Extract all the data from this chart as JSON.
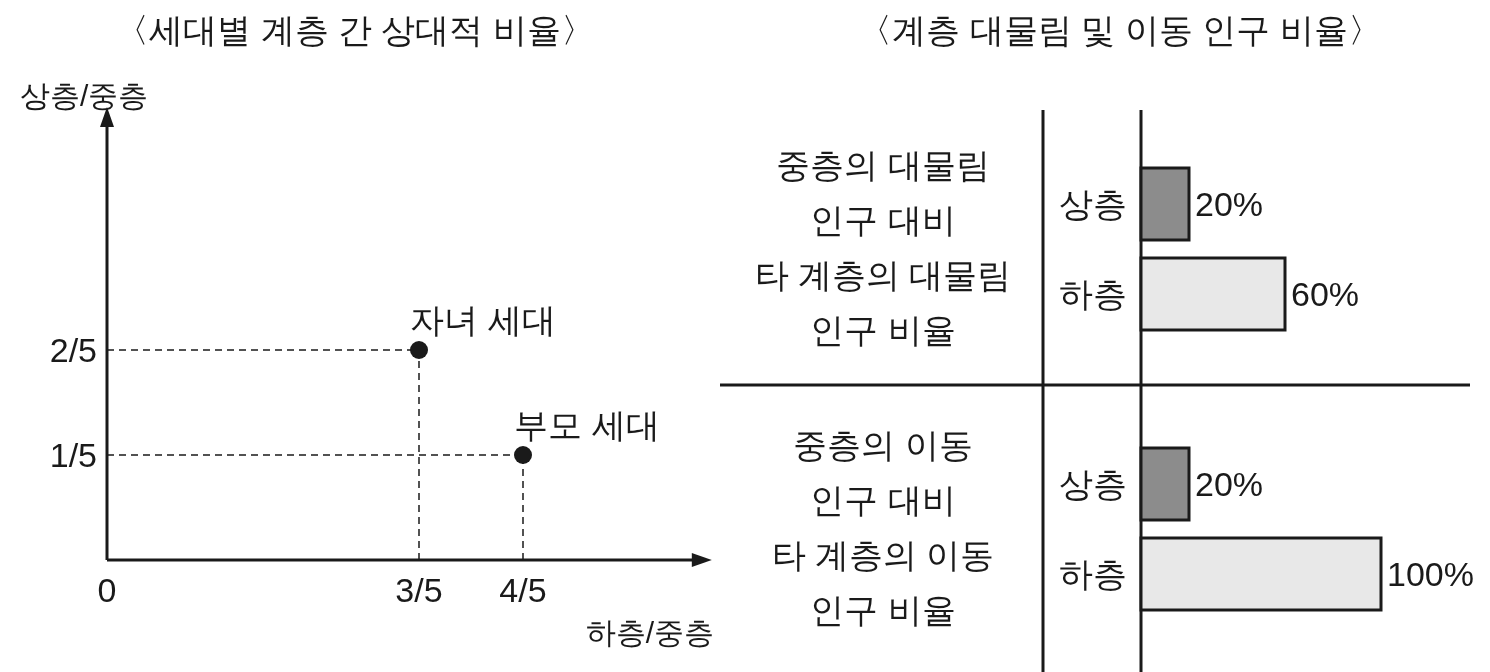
{
  "chart_data": [
    {
      "type": "scatter",
      "title": "〈세대별 계층 간 상대적 비율〉",
      "xlabel": "하층/중층",
      "ylabel": "상층/중층",
      "x": [
        0.6,
        0.8
      ],
      "values": [
        0.4,
        0.2
      ],
      "color": "#1a1a1a",
      "marker": "circle",
      "xlim": [
        0,
        1.14
      ],
      "ylim": [
        0,
        0.84
      ],
      "xticks": [
        0,
        {
          "value": 0.6,
          "label": "3/5"
        },
        {
          "value": 0.8,
          "label": "4/5"
        }
      ],
      "yticks": [
        {
          "value": 0.2,
          "label": "1/5"
        },
        {
          "value": 0.4,
          "label": "2/5"
        }
      ],
      "ref_lines": [
        {
          "axis": "x",
          "value": 0.6,
          "line_style": "dashed"
        },
        {
          "axis": "x",
          "value": 0.8,
          "line_style": "dashed"
        },
        {
          "axis": "y",
          "value": 0.4,
          "line_style": "dashed"
        },
        {
          "axis": "y",
          "value": 0.2,
          "line_style": "dashed"
        }
      ],
      "annotations": [
        {
          "text": "자녀 세대",
          "x": 0.6,
          "y": 0.4
        },
        {
          "text": "부모 세대",
          "x": 0.8,
          "y": 0.2
        }
      ]
    },
    {
      "type": "bar",
      "orientation": "horizontal",
      "title": "〈계층 대물림 및 이동 인구 비율〉",
      "ylabel": "중층의 대물림\n인구 대비\n타 계층의 대물림\n인구 비율",
      "categories": [
        "상층",
        "하층"
      ],
      "values": [
        20,
        60
      ],
      "colors": [
        "#8c8c8c",
        "#e8e8e8"
      ],
      "value_labels": [
        "20%",
        "60%"
      ],
      "tick_labels": "y"
    },
    {
      "type": "bar",
      "orientation": "horizontal",
      "ylabel": "중층의 이동\n인구 대비\n타 계층의 이동\n인구 비율",
      "categories": [
        "상층",
        "하층"
      ],
      "values": [
        20,
        100
      ],
      "colors": [
        "#8c8c8c",
        "#e8e8e8"
      ],
      "value_labels": [
        "20%",
        "100%"
      ],
      "tick_labels": "y"
    }
  ]
}
